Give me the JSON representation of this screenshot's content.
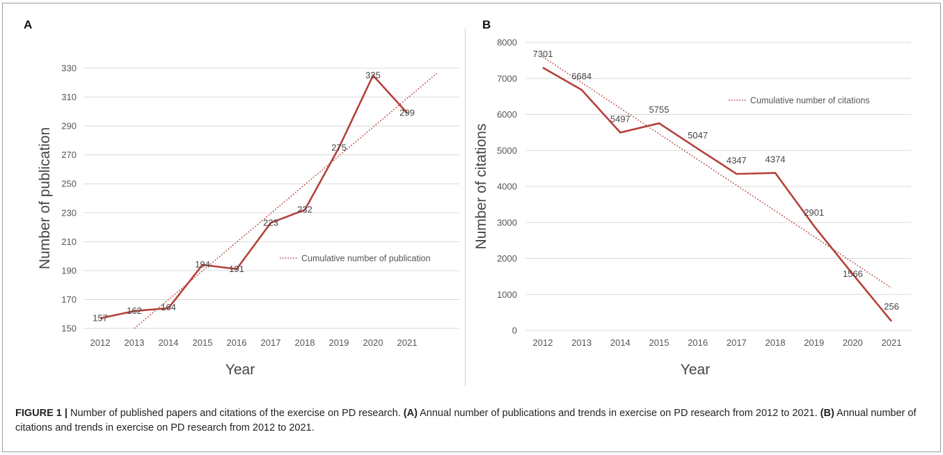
{
  "figure": {
    "caption_label": "FIGURE 1 |",
    "caption_text": " Number of published papers and citations of the exercise on PD research. ",
    "caption_a_label": "(A)",
    "caption_a_text": " Annual number of publications and trends in exercise on PD research from 2012 to 2021. ",
    "caption_b_label": "(B)",
    "caption_b_text": " Annual number of citations and trends in exercise on PD research from 2012 to 2021."
  },
  "colors": {
    "line": "#b5403a",
    "grid": "#d9d9d9",
    "tick": "#555555",
    "axis_title": "#444444"
  },
  "chart_data": [
    {
      "panel": "A",
      "type": "line",
      "title": "",
      "xlabel": "Year",
      "ylabel": "Number of publication",
      "categories": [
        "2012",
        "2013",
        "2014",
        "2015",
        "2016",
        "2017",
        "2018",
        "2019",
        "2020",
        "2021"
      ],
      "yticks": [
        150,
        170,
        190,
        210,
        230,
        250,
        270,
        290,
        310,
        330
      ],
      "ylim": [
        150,
        330
      ],
      "grid": true,
      "series": [
        {
          "values": [
            157,
            162,
            164,
            194,
            191,
            223,
            232,
            275,
            325,
            299
          ]
        },
        {
          "name": "Cumulative number of publication",
          "style": "dotted",
          "x": [
            2013,
            2021.9
          ],
          "values": [
            150,
            327
          ]
        }
      ],
      "data_labels": [
        "157",
        "162",
        "164",
        "194",
        "191",
        "223",
        "232",
        "275",
        "325",
        "299"
      ],
      "legend": "right-middle"
    },
    {
      "panel": "B",
      "type": "line",
      "title": "",
      "xlabel": "Year",
      "ylabel": "Number of citations",
      "categories": [
        "2012",
        "2013",
        "2014",
        "2015",
        "2016",
        "2017",
        "2018",
        "2019",
        "2020",
        "2021"
      ],
      "yticks": [
        0,
        1000,
        2000,
        3000,
        4000,
        5000,
        6000,
        7000,
        8000
      ],
      "ylim": [
        0,
        8000
      ],
      "grid": true,
      "series": [
        {
          "values": [
            7301,
            6684,
            5497,
            5755,
            5047,
            4347,
            4374,
            2901,
            1566,
            256
          ]
        },
        {
          "name": "Cumulative number of citations",
          "style": "dotted",
          "x": [
            2012,
            2021
          ],
          "values": [
            7600,
            1180
          ]
        }
      ],
      "data_labels": [
        "7301",
        "6684",
        "5497",
        "5755",
        "5047",
        "4347",
        "4374",
        "2901",
        "1566",
        "256"
      ],
      "legend": "top-right"
    }
  ]
}
